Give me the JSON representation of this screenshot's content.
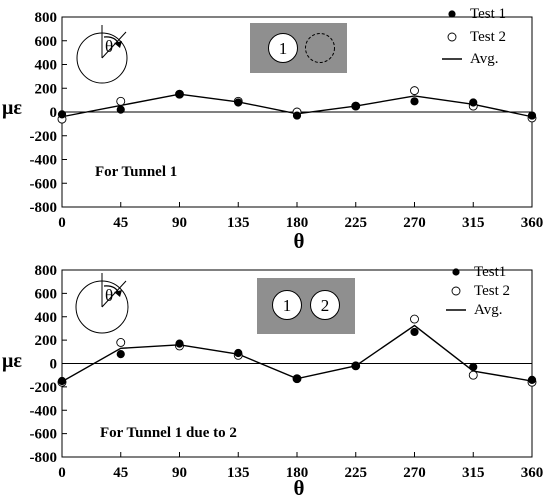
{
  "chart_data": [
    {
      "type": "scatter",
      "x": [
        0,
        45,
        90,
        135,
        180,
        225,
        270,
        315,
        360
      ],
      "xlabel": "θ",
      "ylabel": "με",
      "xlim": [
        0,
        360
      ],
      "ylim": [
        -800,
        800
      ],
      "xticks": [
        "0",
        "45",
        "90",
        "135",
        "180",
        "225",
        "270",
        "315",
        "360"
      ],
      "yticks": [
        "800",
        "600",
        "400",
        "200",
        "0",
        "-200",
        "-400",
        "-600",
        "-800"
      ],
      "series": [
        {
          "name": "Test 1",
          "marker": "filled-circle",
          "values": [
            -20,
            20,
            150,
            80,
            -30,
            50,
            90,
            80,
            -30
          ]
        },
        {
          "name": "Test 2",
          "marker": "open-circle",
          "values": [
            -60,
            90,
            150,
            90,
            0,
            50,
            180,
            50,
            -50
          ]
        },
        {
          "name": "Avg.",
          "marker": "line",
          "values": [
            -40,
            55,
            150,
            85,
            -15,
            50,
            135,
            65,
            -40
          ]
        }
      ],
      "annotation": "For Tunnel 1",
      "inset": {
        "angle_symbol": "θ",
        "tunnels": [
          "1"
        ]
      }
    },
    {
      "type": "scatter",
      "x": [
        0,
        45,
        90,
        135,
        180,
        225,
        270,
        315,
        360
      ],
      "xlabel": "θ",
      "ylabel": "με",
      "xlim": [
        0,
        360
      ],
      "ylim": [
        -800,
        800
      ],
      "xticks": [
        "0",
        "45",
        "90",
        "135",
        "180",
        "225",
        "270",
        "315",
        "360"
      ],
      "yticks": [
        "800",
        "600",
        "400",
        "200",
        "0",
        "-200",
        "-400",
        "-600",
        "-800"
      ],
      "series": [
        {
          "name": "Test1",
          "marker": "filled-circle",
          "values": [
            -150,
            80,
            170,
            90,
            -130,
            -20,
            270,
            -30,
            -140
          ]
        },
        {
          "name": "Test 2",
          "marker": "open-circle",
          "values": [
            -160,
            180,
            150,
            70,
            -130,
            -20,
            380,
            -100,
            -160
          ]
        },
        {
          "name": "Avg.",
          "marker": "line",
          "values": [
            -155,
            130,
            160,
            80,
            -130,
            -20,
            325,
            -65,
            -150
          ]
        }
      ],
      "annotation": "For Tunnel 1 due to 2",
      "inset": {
        "angle_symbol": "θ",
        "tunnels": [
          "1",
          "2"
        ]
      }
    }
  ]
}
